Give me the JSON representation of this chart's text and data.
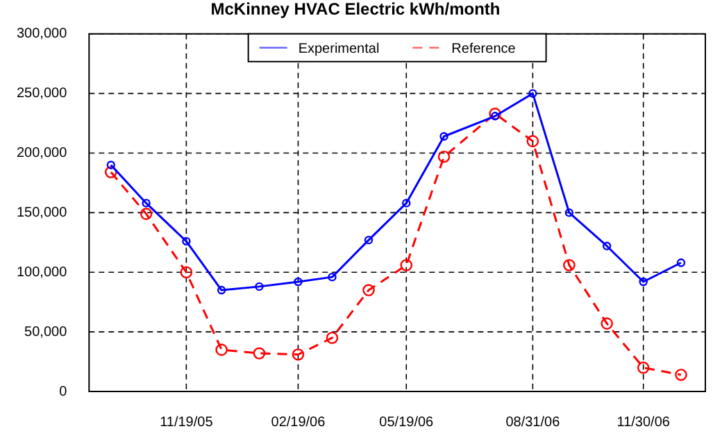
{
  "chart_data": {
    "type": "line",
    "title": "McKinney HVAC Electric kWh/month",
    "x": [
      "2005-09-18",
      "2005-10-17",
      "2005-11-19",
      "2005-12-18",
      "2006-01-18",
      "2006-02-19",
      "2006-03-19",
      "2006-04-18",
      "2006-05-19",
      "2006-06-19",
      "2006-07-31",
      "2006-08-31",
      "2006-09-30",
      "2006-10-31",
      "2006-11-30",
      "2006-12-31"
    ],
    "xlim": [
      "2005-08-31",
      "2007-01-20"
    ],
    "xticks": [
      {
        "value": "2005-11-19",
        "label": "11/19/05"
      },
      {
        "value": "2006-02-19",
        "label": "02/19/06"
      },
      {
        "value": "2006-05-19",
        "label": "05/19/06"
      },
      {
        "value": "2006-08-31",
        "label": "08/31/06"
      },
      {
        "value": "2006-11-30",
        "label": "11/30/06"
      }
    ],
    "ylim": [
      0,
      300000
    ],
    "yticks": [
      {
        "value": 0,
        "label": "0"
      },
      {
        "value": 50000,
        "label": "50,000"
      },
      {
        "value": 100000,
        "label": "100,000"
      },
      {
        "value": 150000,
        "label": "150,000"
      },
      {
        "value": 200000,
        "label": "200,000"
      },
      {
        "value": 250000,
        "label": "250,000"
      },
      {
        "value": 300000,
        "label": "300,000"
      }
    ],
    "series": [
      {
        "name": "Experimental",
        "color": "#0000ff",
        "line_style": "solid",
        "values": [
          190000,
          158000,
          126000,
          85000,
          88000,
          92000,
          96000,
          127000,
          158000,
          214000,
          231000,
          250000,
          150000,
          122000,
          92000,
          108000
        ]
      },
      {
        "name": "Reference",
        "color": "#ff0000",
        "line_style": "dashed",
        "values": [
          184000,
          149000,
          100000,
          35000,
          32000,
          31000,
          45000,
          85000,
          106000,
          197000,
          233000,
          210000,
          106000,
          57000,
          20000,
          14000
        ]
      }
    ],
    "marker": "circle",
    "grid": true,
    "legend": "top"
  }
}
